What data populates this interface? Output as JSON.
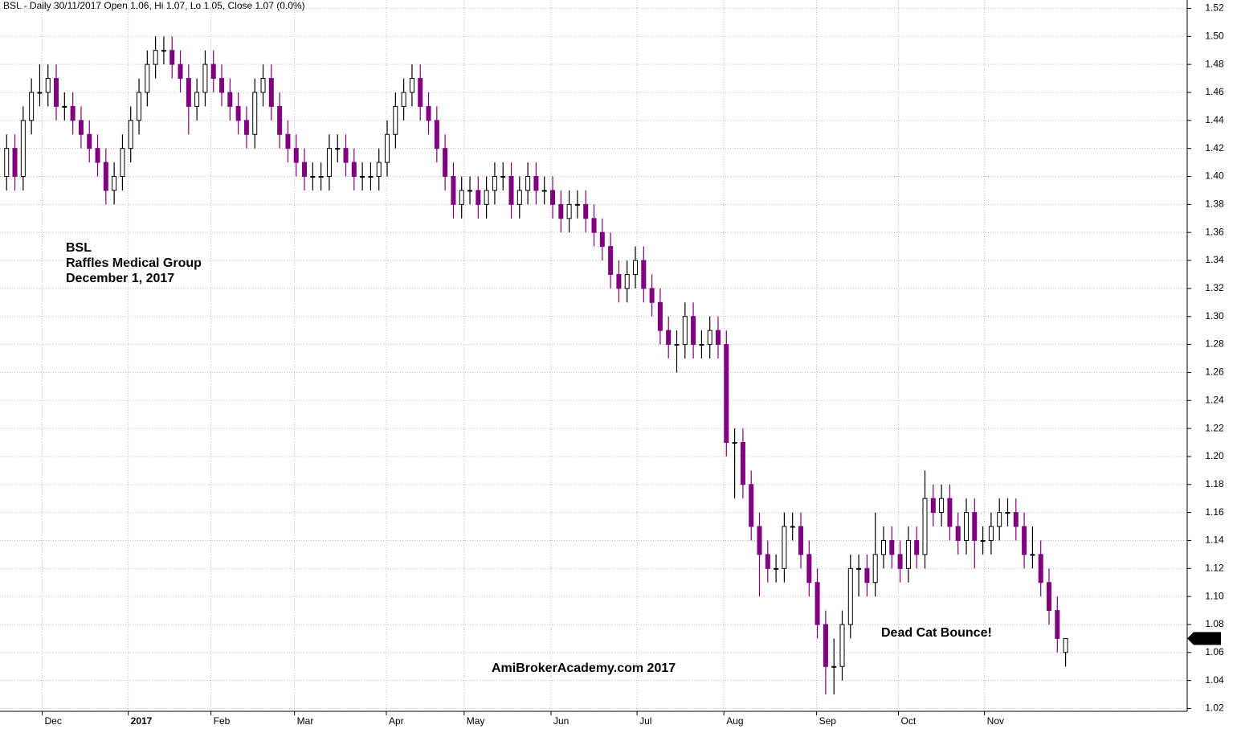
{
  "chart_data": {
    "type": "candlestick",
    "title": "BSL - Daily 30/11/2017 Open 1.06, Hi 1.07, Lo 1.05, Close 1.07 (0.0%)",
    "annotations": [
      "BSL",
      "Raffles Medical Group",
      "December 1, 2017"
    ],
    "watermark": "AmiBrokerAcademy.com  2017",
    "note": "Dead Cat Bounce!",
    "last_price_label": "1.07",
    "up_color": "#ffffff",
    "down_color": "#800080",
    "annotation_color": "#ff0000",
    "grid": true,
    "xlim": [
      -0.8,
      142.7
    ],
    "xticks": [
      {
        "value": 4.3,
        "label": "Dec"
      },
      {
        "value": 14.7,
        "label": "2017"
      },
      {
        "value": 24.7,
        "label": "Feb"
      },
      {
        "value": 34.8,
        "label": "Mar"
      },
      {
        "value": 45.9,
        "label": "Apr"
      },
      {
        "value": 55.3,
        "label": "May"
      },
      {
        "value": 65.8,
        "label": "Jun"
      },
      {
        "value": 76.2,
        "label": "Jul"
      },
      {
        "value": 86.7,
        "label": "Aug"
      },
      {
        "value": 97.9,
        "label": "Sep"
      },
      {
        "value": 107.8,
        "label": "Oct"
      },
      {
        "value": 118.2,
        "label": "Nov"
      }
    ],
    "ylim": [
      1.018,
      1.526
    ],
    "yticks": [
      1.02,
      1.04,
      1.06,
      1.08,
      {
        "value": 1.1,
        "label": "1.10"
      },
      1.12,
      1.14,
      1.16,
      1.18,
      {
        "value": 1.2,
        "label": "1.20"
      },
      1.22,
      1.24,
      1.26,
      1.28,
      {
        "value": 1.3,
        "label": "1.30"
      },
      1.32,
      1.34,
      1.36,
      1.38,
      {
        "value": 1.4,
        "label": "1.40"
      },
      1.42,
      1.44,
      1.46,
      1.48,
      {
        "value": 1.5,
        "label": "1.50"
      },
      1.52
    ],
    "open": [
      1.4,
      1.42,
      1.4,
      1.44,
      1.46,
      1.46,
      1.47,
      1.45,
      1.45,
      1.44,
      1.43,
      1.42,
      1.41,
      1.39,
      1.4,
      1.42,
      1.44,
      1.46,
      1.48,
      1.49,
      1.49,
      1.48,
      1.47,
      1.45,
      1.46,
      1.48,
      1.47,
      1.46,
      1.45,
      1.44,
      1.43,
      1.46,
      1.47,
      1.45,
      1.43,
      1.42,
      1.41,
      1.4,
      1.4,
      1.4,
      1.42,
      1.42,
      1.41,
      1.4,
      1.4,
      1.4,
      1.41,
      1.43,
      1.45,
      1.46,
      1.47,
      1.45,
      1.44,
      1.42,
      1.4,
      1.38,
      1.39,
      1.39,
      1.38,
      1.39,
      1.4,
      1.4,
      1.38,
      1.39,
      1.4,
      1.39,
      1.39,
      1.38,
      1.37,
      1.38,
      1.38,
      1.37,
      1.36,
      1.35,
      1.33,
      1.32,
      1.33,
      1.34,
      1.32,
      1.31,
      1.29,
      1.28,
      1.28,
      1.3,
      1.28,
      1.28,
      1.29,
      1.28,
      1.21,
      1.21,
      1.18,
      1.15,
      1.13,
      1.12,
      1.12,
      1.15,
      1.15,
      1.13,
      1.11,
      1.08,
      1.05,
      1.05,
      1.08,
      1.12,
      1.12,
      1.11,
      1.13,
      1.14,
      1.13,
      1.12,
      1.14,
      1.13,
      1.17,
      1.16,
      1.17,
      1.15,
      1.14,
      1.16,
      1.14,
      1.14,
      1.15,
      1.16,
      1.16,
      1.15,
      1.13,
      1.13,
      1.11,
      1.09,
      1.06
    ],
    "high": [
      1.43,
      1.43,
      1.45,
      1.47,
      1.48,
      1.48,
      1.48,
      1.46,
      1.46,
      1.45,
      1.44,
      1.43,
      1.42,
      1.41,
      1.43,
      1.45,
      1.47,
      1.49,
      1.5,
      1.5,
      1.5,
      1.49,
      1.48,
      1.47,
      1.49,
      1.49,
      1.48,
      1.47,
      1.46,
      1.45,
      1.47,
      1.48,
      1.48,
      1.46,
      1.44,
      1.43,
      1.42,
      1.41,
      1.41,
      1.43,
      1.43,
      1.43,
      1.42,
      1.41,
      1.41,
      1.42,
      1.44,
      1.46,
      1.47,
      1.48,
      1.48,
      1.46,
      1.45,
      1.43,
      1.41,
      1.4,
      1.4,
      1.4,
      1.4,
      1.41,
      1.41,
      1.41,
      1.4,
      1.41,
      1.41,
      1.4,
      1.4,
      1.39,
      1.39,
      1.39,
      1.39,
      1.38,
      1.37,
      1.36,
      1.34,
      1.34,
      1.35,
      1.35,
      1.33,
      1.32,
      1.3,
      1.29,
      1.31,
      1.31,
      1.29,
      1.3,
      1.3,
      1.29,
      1.22,
      1.22,
      1.19,
      1.16,
      1.14,
      1.13,
      1.16,
      1.16,
      1.16,
      1.14,
      1.12,
      1.09,
      1.07,
      1.09,
      1.13,
      1.13,
      1.13,
      1.16,
      1.15,
      1.15,
      1.14,
      1.15,
      1.15,
      1.19,
      1.18,
      1.18,
      1.18,
      1.16,
      1.17,
      1.17,
      1.15,
      1.16,
      1.17,
      1.17,
      1.17,
      1.16,
      1.15,
      1.14,
      1.12,
      1.1,
      1.07
    ],
    "low": [
      1.39,
      1.39,
      1.39,
      1.43,
      1.45,
      1.45,
      1.44,
      1.44,
      1.43,
      1.42,
      1.41,
      1.4,
      1.38,
      1.38,
      1.39,
      1.41,
      1.43,
      1.45,
      1.47,
      1.48,
      1.47,
      1.46,
      1.43,
      1.44,
      1.45,
      1.46,
      1.45,
      1.44,
      1.43,
      1.42,
      1.42,
      1.45,
      1.44,
      1.42,
      1.41,
      1.4,
      1.39,
      1.39,
      1.39,
      1.39,
      1.41,
      1.4,
      1.39,
      1.39,
      1.39,
      1.39,
      1.4,
      1.42,
      1.44,
      1.45,
      1.44,
      1.43,
      1.41,
      1.39,
      1.37,
      1.37,
      1.38,
      1.37,
      1.37,
      1.38,
      1.39,
      1.37,
      1.37,
      1.38,
      1.38,
      1.38,
      1.37,
      1.36,
      1.36,
      1.37,
      1.36,
      1.35,
      1.34,
      1.32,
      1.31,
      1.31,
      1.32,
      1.31,
      1.3,
      1.28,
      1.27,
      1.26,
      1.27,
      1.27,
      1.27,
      1.27,
      1.27,
      1.2,
      1.17,
      1.17,
      1.14,
      1.1,
      1.11,
      1.11,
      1.11,
      1.14,
      1.12,
      1.1,
      1.07,
      1.03,
      1.03,
      1.04,
      1.07,
      1.1,
      1.1,
      1.1,
      1.12,
      1.12,
      1.11,
      1.11,
      1.12,
      1.12,
      1.15,
      1.15,
      1.14,
      1.13,
      1.13,
      1.12,
      1.13,
      1.13,
      1.14,
      1.15,
      1.14,
      1.12,
      1.12,
      1.1,
      1.08,
      1.06,
      1.05
    ],
    "close": [
      1.42,
      1.4,
      1.44,
      1.46,
      1.46,
      1.47,
      1.45,
      1.45,
      1.44,
      1.43,
      1.42,
      1.41,
      1.39,
      1.4,
      1.42,
      1.44,
      1.46,
      1.48,
      1.49,
      1.49,
      1.48,
      1.47,
      1.45,
      1.46,
      1.48,
      1.47,
      1.46,
      1.45,
      1.44,
      1.43,
      1.46,
      1.47,
      1.45,
      1.43,
      1.42,
      1.41,
      1.4,
      1.4,
      1.4,
      1.42,
      1.42,
      1.41,
      1.4,
      1.4,
      1.4,
      1.41,
      1.43,
      1.45,
      1.46,
      1.47,
      1.45,
      1.44,
      1.42,
      1.4,
      1.38,
      1.39,
      1.39,
      1.38,
      1.39,
      1.4,
      1.4,
      1.38,
      1.39,
      1.4,
      1.39,
      1.39,
      1.38,
      1.37,
      1.38,
      1.38,
      1.37,
      1.36,
      1.35,
      1.33,
      1.32,
      1.33,
      1.34,
      1.32,
      1.31,
      1.29,
      1.28,
      1.28,
      1.3,
      1.28,
      1.28,
      1.29,
      1.28,
      1.21,
      1.21,
      1.18,
      1.15,
      1.13,
      1.12,
      1.12,
      1.15,
      1.15,
      1.13,
      1.11,
      1.08,
      1.05,
      1.05,
      1.08,
      1.12,
      1.12,
      1.11,
      1.13,
      1.14,
      1.13,
      1.12,
      1.14,
      1.13,
      1.17,
      1.16,
      1.17,
      1.15,
      1.14,
      1.16,
      1.14,
      1.14,
      1.15,
      1.16,
      1.16,
      1.15,
      1.13,
      1.13,
      1.11,
      1.09,
      1.07,
      1.07
    ]
  }
}
